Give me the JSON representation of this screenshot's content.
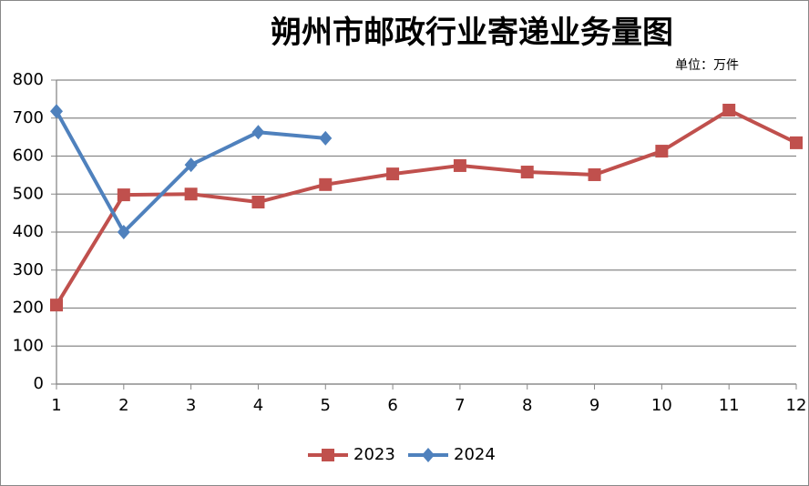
{
  "chart_data": {
    "type": "line",
    "title": "朔州市邮政行业寄递业务量图",
    "annotation": "单位：万件",
    "categories": [
      "1",
      "2",
      "3",
      "4",
      "5",
      "6",
      "7",
      "8",
      "9",
      "10",
      "11",
      "12"
    ],
    "series": [
      {
        "name": "2023",
        "color": "#c0504d",
        "marker": "square",
        "values": [
          208,
          498,
          500,
          479,
          525,
          553,
          575,
          558,
          551,
          613,
          721,
          635
        ]
      },
      {
        "name": "2024",
        "color": "#4f81bd",
        "marker": "diamond",
        "values": [
          718,
          400,
          577,
          663,
          647,
          null,
          null,
          null,
          null,
          null,
          null,
          null
        ]
      }
    ],
    "ylim": [
      0,
      800
    ],
    "yticks": [
      0,
      100,
      200,
      300,
      400,
      500,
      600,
      700,
      800
    ],
    "grid": true,
    "legend": "bottom"
  }
}
